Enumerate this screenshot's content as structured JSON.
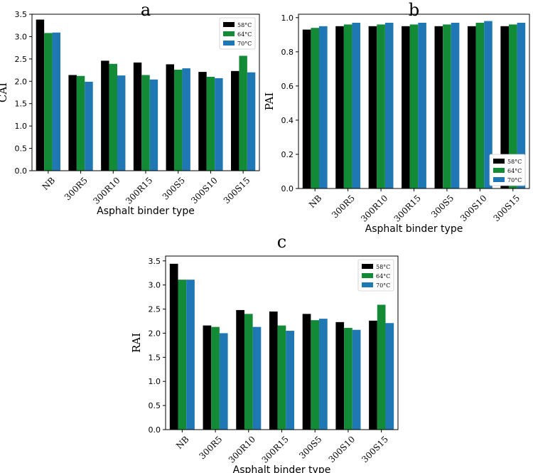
{
  "chart_data": [
    {
      "type": "bar",
      "title": "a",
      "xlabel": "Asphalt binder type",
      "ylabel": "CAI",
      "ylim": [
        0,
        3.5
      ],
      "yticks": [
        0.0,
        0.5,
        1.0,
        1.5,
        2.0,
        2.5,
        3.0,
        3.5
      ],
      "ytick_labels": [
        "0.0",
        "0.5",
        "1.0",
        "1.5",
        "2.0",
        "2.5",
        "3.0",
        "3.5"
      ],
      "legend_position": "top-right",
      "categories": [
        "NB",
        "300R5",
        "300R10",
        "300R15",
        "300S5",
        "300S10",
        "300S15"
      ],
      "series": [
        {
          "name": "58°C",
          "color": "#000000",
          "values": [
            3.38,
            2.14,
            2.46,
            2.42,
            2.38,
            2.21,
            2.23
          ]
        },
        {
          "name": "64°C",
          "color": "#138a36",
          "values": [
            3.08,
            2.12,
            2.39,
            2.14,
            2.26,
            2.1,
            2.57
          ]
        },
        {
          "name": "70°C",
          "color": "#1f77b4",
          "values": [
            3.09,
            1.99,
            2.13,
            2.04,
            2.29,
            2.07,
            2.2
          ]
        }
      ]
    },
    {
      "type": "bar",
      "title": "b",
      "xlabel": "Asphalt binder type",
      "ylabel": "PAI",
      "ylim": [
        0,
        1.02
      ],
      "yticks": [
        0.0,
        0.2,
        0.4,
        0.6,
        0.8,
        1.0
      ],
      "ytick_labels": [
        "0.0",
        "0.2",
        "0.4",
        "0.6",
        "0.8",
        "1.0"
      ],
      "legend_position": "bottom-right",
      "categories": [
        "NB",
        "300R5",
        "300R10",
        "300R15",
        "300S5",
        "300S10",
        "300S15"
      ],
      "series": [
        {
          "name": "58°C",
          "color": "#000000",
          "values": [
            0.93,
            0.95,
            0.95,
            0.95,
            0.95,
            0.95,
            0.95
          ]
        },
        {
          "name": "64°C",
          "color": "#138a36",
          "values": [
            0.94,
            0.96,
            0.96,
            0.96,
            0.96,
            0.97,
            0.96
          ]
        },
        {
          "name": "70°C",
          "color": "#1f77b4",
          "values": [
            0.95,
            0.97,
            0.97,
            0.97,
            0.97,
            0.98,
            0.97
          ]
        }
      ]
    },
    {
      "type": "bar",
      "title": "c",
      "xlabel": "Asphalt binder type",
      "ylabel": "RAI",
      "ylim": [
        0,
        3.6
      ],
      "yticks": [
        0.0,
        0.5,
        1.0,
        1.5,
        2.0,
        2.5,
        3.0,
        3.5
      ],
      "ytick_labels": [
        "0.0",
        "0.5",
        "1.0",
        "1.5",
        "2.0",
        "2.5",
        "3.0",
        "3.5"
      ],
      "legend_position": "top-right",
      "categories": [
        "NB",
        "300R5",
        "300R10",
        "300R15",
        "300S5",
        "300S10",
        "300S15"
      ],
      "series": [
        {
          "name": "58°C",
          "color": "#000000",
          "values": [
            3.44,
            2.16,
            2.48,
            2.45,
            2.4,
            2.23,
            2.26
          ]
        },
        {
          "name": "64°C",
          "color": "#138a36",
          "values": [
            3.11,
            2.13,
            2.4,
            2.16,
            2.27,
            2.11,
            2.59
          ]
        },
        {
          "name": "70°C",
          "color": "#1f77b4",
          "values": [
            3.11,
            2.0,
            2.13,
            2.05,
            2.3,
            2.07,
            2.21
          ]
        }
      ]
    }
  ]
}
